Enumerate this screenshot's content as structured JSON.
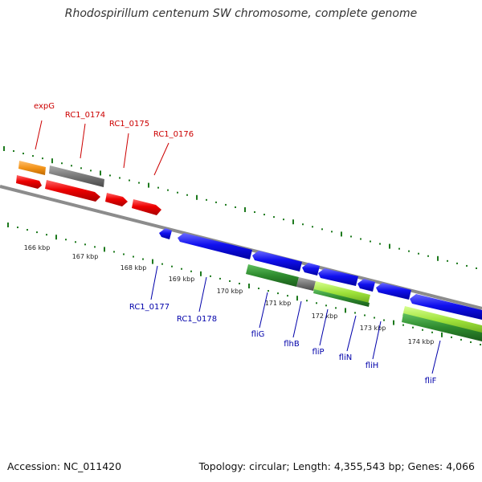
{
  "title": "Rhodospirillum centenum SW chromosome, complete genome",
  "footer": {
    "accession": "Accession: NC_011420",
    "topology": "Topology: circular; Length: 4,355,543 bp; Genes: 4,066"
  },
  "colors": {
    "backbone": "#8c8c8c",
    "tick": "#1e7a1e",
    "forward_gene": "#ee0000",
    "reverse_gene": "#1010ee",
    "label_forward": "#cc0000",
    "label_reverse": "#0000aa",
    "orange_feature": "#f39419",
    "gray_feature": "#777777",
    "dark_green_feature": "#2e8b2e",
    "light_green_feature": "#9ee23a"
  },
  "kbp_labels": [
    "166 kbp",
    "167 kbp",
    "168 kbp",
    "169 kbp",
    "170 kbp",
    "171 kbp",
    "172 kbp",
    "173 kbp",
    "174 kbp"
  ],
  "forward_genes": [
    {
      "label": "expG",
      "feature_color": "orange"
    },
    {
      "label": "RC1_0174",
      "feature_color": "gray"
    },
    {
      "label": "RC1_0175",
      "feature_color": ""
    },
    {
      "label": "RC1_0176",
      "feature_color": ""
    }
  ],
  "reverse_genes": [
    {
      "label": "RC1_0177"
    },
    {
      "label": "RC1_0178"
    },
    {
      "label": "fliG"
    },
    {
      "label": "flhB"
    },
    {
      "label": "fliP"
    },
    {
      "label": "fliN"
    },
    {
      "label": "fliH"
    },
    {
      "label": "fliF"
    }
  ]
}
